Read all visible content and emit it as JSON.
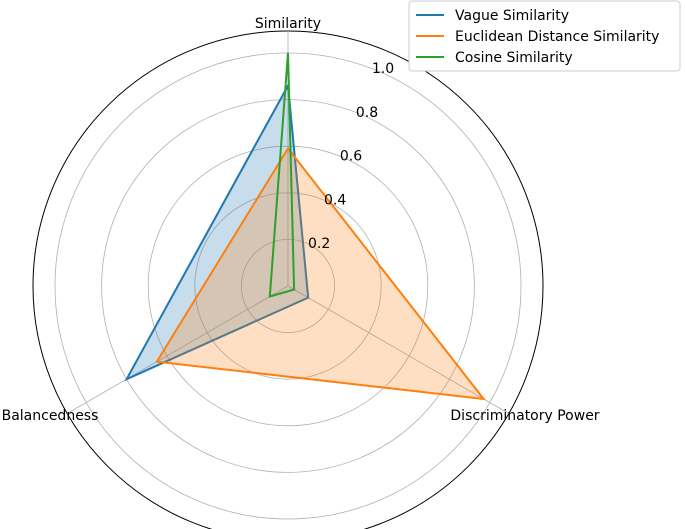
{
  "chart_data": {
    "type": "radar",
    "axes": [
      "Similarity",
      "Discriminatory Power",
      "Balancedness"
    ],
    "rticks": [
      "0.2",
      "0.4",
      "0.6",
      "0.8",
      "1.0"
    ],
    "rtick_values": [
      0.2,
      0.4,
      0.6,
      0.8,
      1.0
    ],
    "rlim": [
      0,
      1.0
    ],
    "grid": true,
    "legend_position": "top-right",
    "series": [
      {
        "name": "Vague Similarity",
        "color": "#1f77b4",
        "fill_opacity": 0.25,
        "values": [
          0.86,
          0.1,
          0.8
        ]
      },
      {
        "name": "Euclidean Distance Similarity",
        "color": "#ff7f0e",
        "fill_opacity": 0.25,
        "values": [
          0.59,
          0.97,
          0.65
        ]
      },
      {
        "name": "Cosine Similarity",
        "color": "#2ca02c",
        "fill_opacity": 0.0,
        "values": [
          1.0,
          0.03,
          0.09
        ]
      }
    ]
  }
}
